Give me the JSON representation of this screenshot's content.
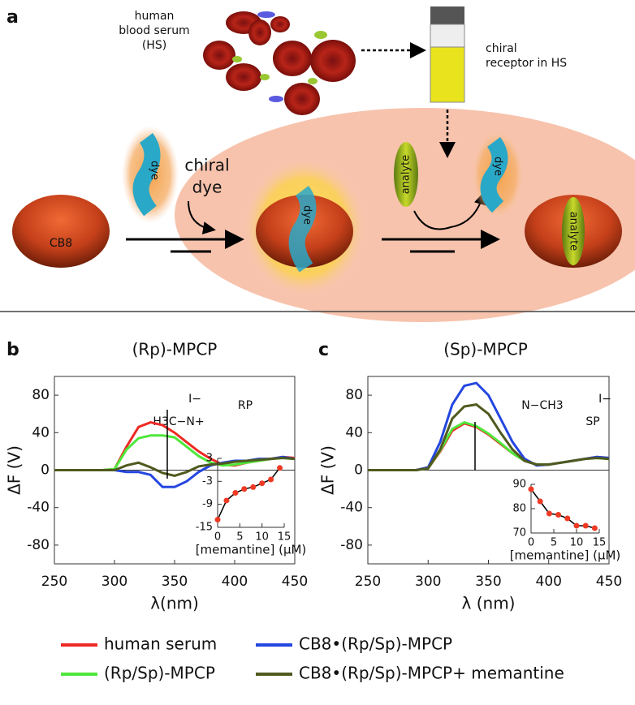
{
  "panel_a": {
    "label": "a",
    "serum_label": [
      "human",
      "blood serum",
      "(HS)"
    ],
    "receptor_label": [
      "chiral",
      "receptor in HS"
    ],
    "dye_label": [
      "chiral",
      "dye"
    ],
    "host": "CB8",
    "dye": "dye",
    "analyte": "analyte"
  },
  "chart_data": [
    {
      "type": "line",
      "panel_label": "b",
      "title": "(Rp)-MPCP",
      "xlabel": "λ(nm)",
      "ylabel": "ΔF (V)",
      "x": [
        250,
        260,
        270,
        280,
        290,
        300,
        310,
        320,
        330,
        340,
        350,
        360,
        370,
        380,
        390,
        400,
        410,
        420,
        430,
        440,
        450
      ],
      "series": [
        {
          "name": "human serum",
          "color": "#ee2a24",
          "values": [
            0,
            0,
            0,
            0,
            0,
            1,
            25,
            46,
            51,
            48,
            40,
            30,
            20,
            12,
            6,
            5,
            8,
            10,
            12,
            14,
            13
          ]
        },
        {
          "name": "(Rp/Sp)-MPCP",
          "color": "#4ee83a",
          "values": [
            0,
            0,
            0,
            0,
            0,
            1,
            22,
            34,
            37,
            37,
            35,
            25,
            15,
            8,
            5,
            6,
            8,
            10,
            12,
            13,
            12
          ]
        },
        {
          "name": "CB8•(Rp/Sp)-MPCP",
          "color": "#2446e0",
          "values": [
            0,
            0,
            0,
            0,
            0,
            0,
            -2,
            -2,
            -5,
            -18,
            -18,
            -12,
            -2,
            5,
            8,
            10,
            10,
            12,
            12,
            14,
            12
          ]
        },
        {
          "name": "CB8•(Rp/Sp)-MPCP+ memantine",
          "color": "#4f5a1e",
          "values": [
            0,
            0,
            0,
            0,
            0,
            0,
            5,
            8,
            3,
            -3,
            -6,
            -2,
            4,
            6,
            7,
            9,
            10,
            11,
            12,
            13,
            12
          ]
        }
      ],
      "xlim": [
        250,
        450
      ],
      "ylim": [
        -100,
        100
      ],
      "xticks": [
        250,
        300,
        350,
        400,
        450
      ],
      "yticks": [
        -80,
        -40,
        0,
        40,
        80
      ],
      "structure_labels": [
        "I−",
        "H3C−N+",
        "RP"
      ]
    },
    {
      "type": "line",
      "xlabel": "[memantine] (μM)",
      "x": [
        0,
        2,
        4,
        6,
        8,
        10,
        12,
        14
      ],
      "series": [
        {
          "color": "#000000",
          "marker_color": "#ee3a24",
          "values": [
            -13,
            -8,
            -6,
            -5,
            -4.5,
            -3.5,
            -2.5,
            0.5
          ]
        }
      ],
      "xlim": [
        0,
        15
      ],
      "ylim": [
        -15,
        3
      ],
      "xticks": [
        0,
        5,
        10,
        15
      ],
      "yticks": [
        -15,
        -9,
        -3,
        3
      ]
    },
    {
      "type": "line",
      "panel_label": "c",
      "title": "(Sp)-MPCP",
      "xlabel": "λ (nm)",
      "ylabel": "ΔF (V)",
      "x": [
        250,
        260,
        270,
        280,
        290,
        300,
        310,
        320,
        330,
        340,
        350,
        360,
        370,
        380,
        390,
        400,
        410,
        420,
        430,
        440,
        450
      ],
      "series": [
        {
          "color": "#ee2a24",
          "values": [
            0,
            0,
            0,
            0,
            0,
            2,
            20,
            42,
            50,
            46,
            38,
            28,
            18,
            10,
            6,
            6,
            8,
            10,
            12,
            14,
            13
          ]
        },
        {
          "color": "#4ee83a",
          "values": [
            0,
            0,
            0,
            0,
            0,
            2,
            21,
            44,
            51,
            47,
            39,
            29,
            18,
            10,
            6,
            6,
            8,
            10,
            12,
            13,
            12
          ]
        },
        {
          "color": "#2446e0",
          "values": [
            0,
            0,
            0,
            0,
            0,
            3,
            30,
            70,
            90,
            93,
            80,
            55,
            30,
            12,
            5,
            6,
            8,
            10,
            12,
            14,
            13
          ]
        },
        {
          "color": "#4f5a1e",
          "values": [
            0,
            0,
            0,
            0,
            0,
            2,
            22,
            55,
            68,
            70,
            60,
            40,
            22,
            10,
            6,
            6,
            8,
            10,
            12,
            13,
            12
          ]
        }
      ],
      "xlim": [
        250,
        450
      ],
      "ylim": [
        -100,
        100
      ],
      "xticks": [
        250,
        300,
        350,
        400,
        450
      ],
      "yticks": [
        -80,
        -40,
        0,
        40,
        80
      ],
      "structure_labels": [
        "I−",
        "SP",
        "N−CH3"
      ]
    },
    {
      "type": "line",
      "xlabel": "[memantine] (μM)",
      "x": [
        0,
        2,
        4,
        6,
        8,
        10,
        12,
        14
      ],
      "series": [
        {
          "color": "#000000",
          "marker_color": "#ee3a24",
          "values": [
            88,
            83,
            78,
            77.5,
            76,
            73,
            73,
            72
          ]
        }
      ],
      "xlim": [
        0,
        15
      ],
      "ylim": [
        70,
        90
      ],
      "xticks": [
        0,
        5,
        10,
        15
      ],
      "yticks": [
        70,
        80,
        90
      ]
    }
  ]
}
